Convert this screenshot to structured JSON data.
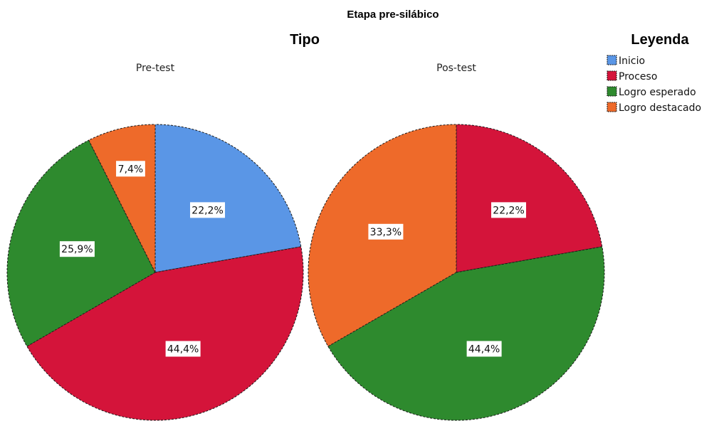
{
  "chart_data": {
    "type": "pie",
    "title": "Etapa pre-silábico",
    "group_title": "Tipo",
    "legend": {
      "title": "Leyenda",
      "position": "top-right",
      "entries": [
        {
          "name": "Inicio",
          "color": "#5a96e6"
        },
        {
          "name": "Proceso",
          "color": "#d4143a"
        },
        {
          "name": "Logro esperado",
          "color": "#2e8a2e"
        },
        {
          "name": "Logro destacado",
          "color": "#ee6a2a"
        }
      ]
    },
    "pies": [
      {
        "name": "Pre-test",
        "slices": [
          {
            "category": "Inicio",
            "value": 22.2,
            "label": "22,2%"
          },
          {
            "category": "Proceso",
            "value": 44.4,
            "label": "44,4%"
          },
          {
            "category": "Logro esperado",
            "value": 25.9,
            "label": "25,9%"
          },
          {
            "category": "Logro destacado",
            "value": 7.4,
            "label": "7,4%"
          }
        ]
      },
      {
        "name": "Pos-test",
        "slices": [
          {
            "category": "Proceso",
            "value": 22.2,
            "label": "22,2%"
          },
          {
            "category": "Logro esperado",
            "value": 44.4,
            "label": "44,4%"
          },
          {
            "category": "Logro destacado",
            "value": 33.3,
            "label": "33,3%"
          }
        ]
      }
    ]
  }
}
